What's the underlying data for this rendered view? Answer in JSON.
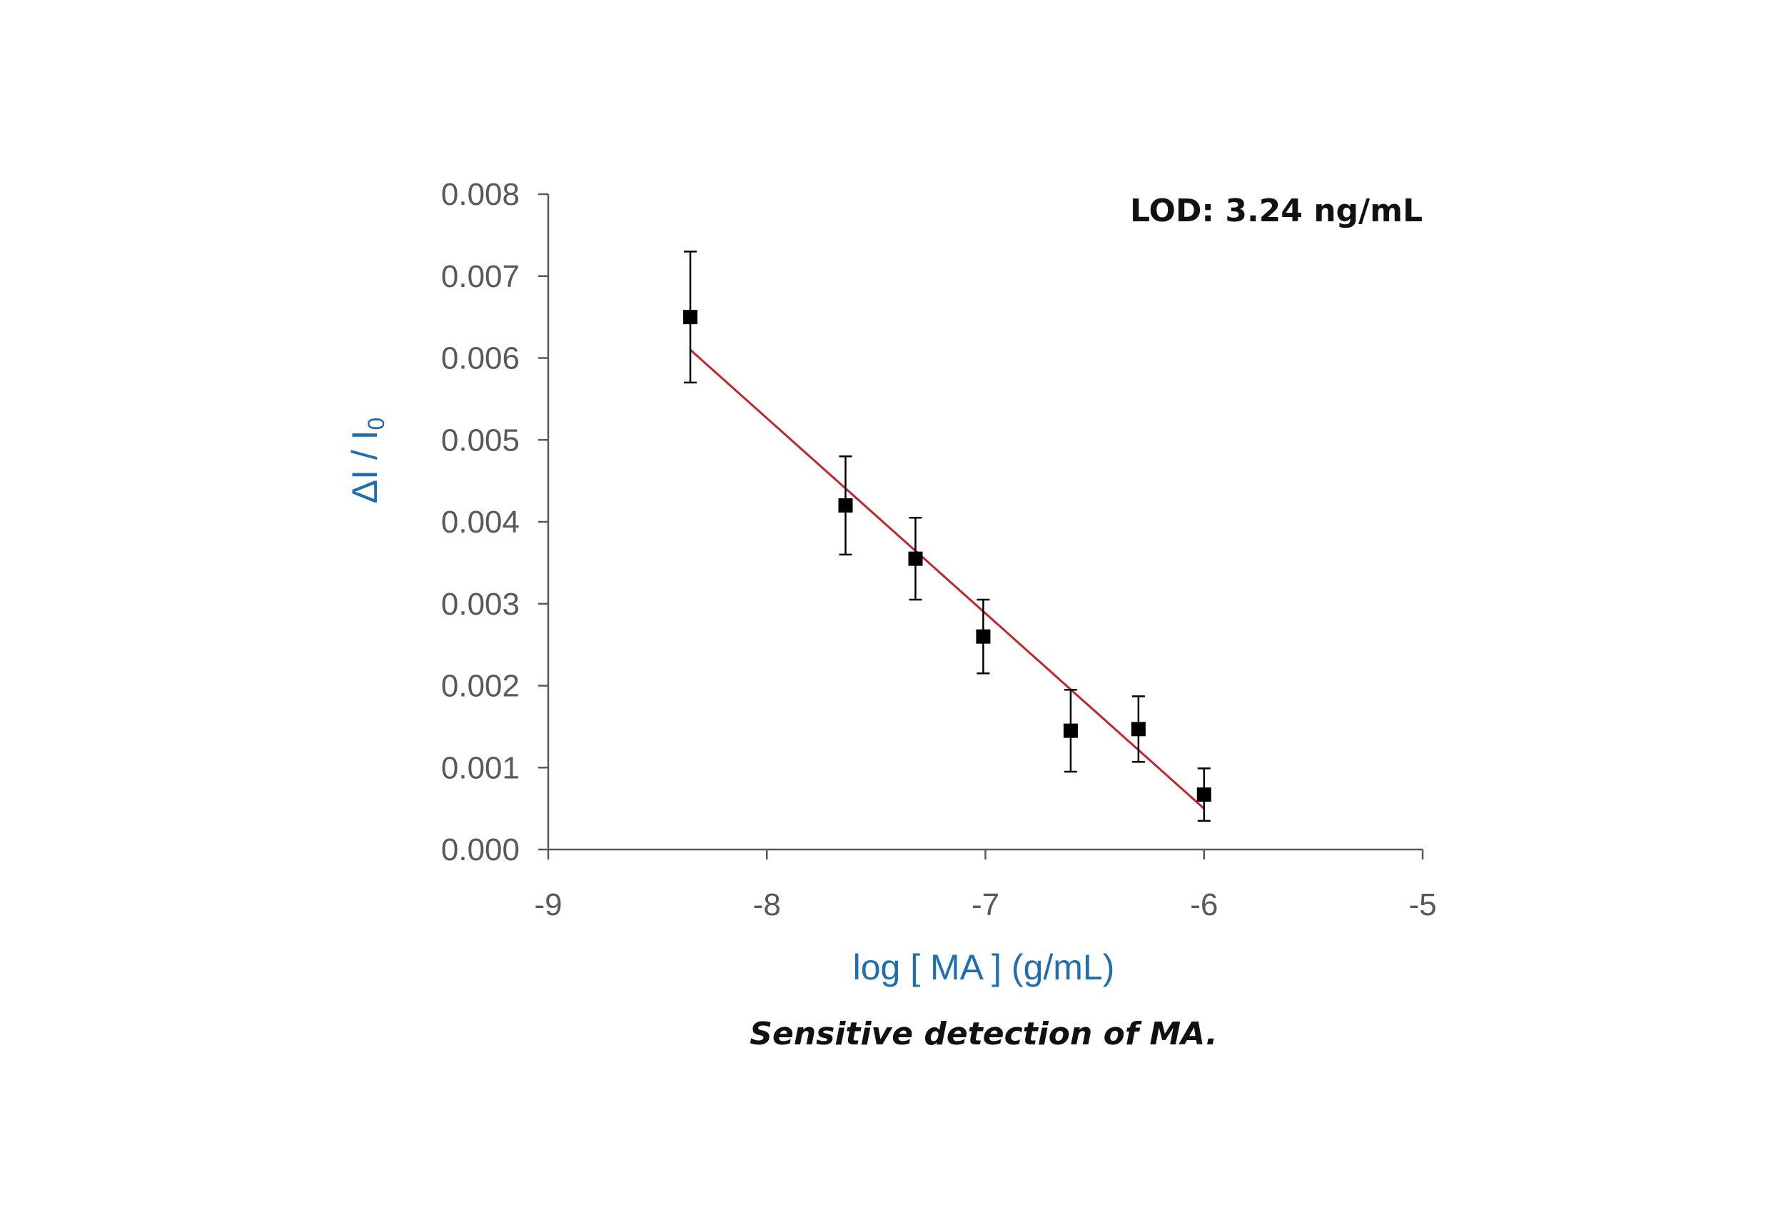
{
  "chart_data": {
    "type": "scatter",
    "xlabel": "log [ MA ] (g/mL)",
    "ylabel_main": "ΔI / I",
    "ylabel_sub": "0",
    "xlim": [
      -9,
      -5
    ],
    "ylim": [
      0,
      0.008
    ],
    "xticks": [
      "-9",
      "-8",
      "-7",
      "-6",
      "-5"
    ],
    "yticks": [
      "0.000",
      "0.001",
      "0.002",
      "0.003",
      "0.004",
      "0.005",
      "0.006",
      "0.007",
      "0.008"
    ],
    "annotation": "LOD: 3.24 ng/mL",
    "caption": "Sensitive detection of MA.",
    "points": [
      {
        "x": -8.35,
        "y": 0.0065,
        "err": 0.0008
      },
      {
        "x": -7.64,
        "y": 0.0042,
        "err": 0.0006
      },
      {
        "x": -7.32,
        "y": 0.00355,
        "err": 0.0005
      },
      {
        "x": -7.01,
        "y": 0.0026,
        "err": 0.00045
      },
      {
        "x": -6.61,
        "y": 0.00145,
        "err": 0.0005
      },
      {
        "x": -6.3,
        "y": 0.00147,
        "err": 0.0004
      },
      {
        "x": -6.0,
        "y": 0.00067,
        "err": 0.00032
      }
    ],
    "fit": {
      "x": [
        -8.35,
        -6.0
      ],
      "y": [
        0.0061,
        0.0005
      ]
    },
    "colors": {
      "axis": "#595959",
      "marker": "#000000",
      "fit_line": "#c0272d",
      "axis_title": "#1f6fb0"
    }
  }
}
